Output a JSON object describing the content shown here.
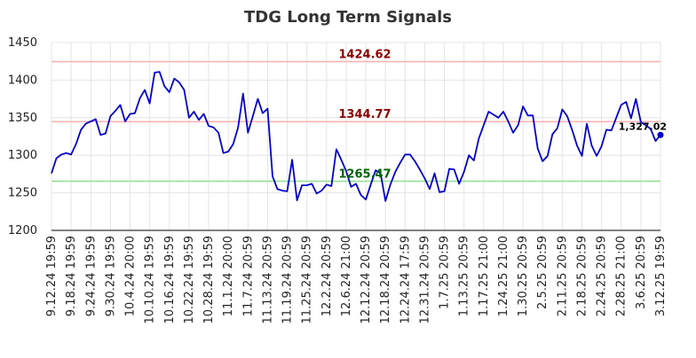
{
  "chart_data": {
    "type": "line",
    "title": "TDG Long Term Signals",
    "xlabel": "",
    "ylabel": "",
    "ylim": [
      1200,
      1450
    ],
    "yticks": [
      1200,
      1250,
      1300,
      1350,
      1400,
      1450
    ],
    "grid": true,
    "line_color": "#0000cc",
    "x_tick_labels": [
      "9.12.24 19:59",
      "9.18.24 19:59",
      "9.24.24 19:59",
      "9.30.24 19:59",
      "10.4.24 20:00",
      "10.10.24 19:59",
      "10.16.24 19:59",
      "10.22.24 19:59",
      "10.28.24 19:59",
      "11.1.24 20:00",
      "11.7.24 20:59",
      "11.13.24 20:59",
      "11.19.24 20:59",
      "11.25.24 20:59",
      "12.2.24 20:59",
      "12.6.24 21:00",
      "12.12.24 20:59",
      "12.18.24 20:59",
      "12.24.24 17:59",
      "12.31.24 20:59",
      "1.7.25 20:59",
      "1.13.25 20:59",
      "1.17.25 21:00",
      "1.24.25 21:00",
      "1.30.25 20:59",
      "2.5.25 20:59",
      "2.11.25 20:59",
      "2.18.25 20:59",
      "2.24.25 20:59",
      "2.28.25 21:00",
      "3.6.25 20:59",
      "3.12.25 19:59"
    ],
    "series": [
      {
        "values": [
          1276,
          1296,
          1301,
          1303,
          1301,
          1315,
          1334,
          1342,
          1345,
          1348,
          1327,
          1329,
          1352,
          1359,
          1367,
          1345,
          1355,
          1356,
          1376,
          1387,
          1369,
          1410,
          1411,
          1392,
          1384,
          1402,
          1397,
          1387,
          1350,
          1358,
          1347,
          1355,
          1339,
          1337,
          1330,
          1303,
          1305,
          1315,
          1337,
          1382,
          1330,
          1352,
          1375,
          1356,
          1362,
          1272,
          1255,
          1253,
          1252,
          1294,
          1240,
          1260,
          1260,
          1262,
          1249,
          1253,
          1261,
          1259,
          1308,
          1294,
          1279,
          1258,
          1262,
          1247,
          1241,
          1261,
          1280,
          1276,
          1239,
          1261,
          1278,
          1290,
          1301,
          1301,
          1292,
          1281,
          1269,
          1255,
          1276,
          1251,
          1252,
          1282,
          1281,
          1262,
          1278,
          1300,
          1293,
          1322,
          1340,
          1358,
          1354,
          1350,
          1358,
          1345,
          1330,
          1340,
          1365,
          1353,
          1353,
          1309,
          1292,
          1299,
          1328,
          1336,
          1361,
          1352,
          1334,
          1313,
          1299,
          1342,
          1313,
          1299,
          1312,
          1334,
          1333,
          1350,
          1367,
          1371,
          1349,
          1375,
          1344,
          1340,
          1335,
          1319,
          1327
        ]
      }
    ],
    "levels": [
      {
        "value": 1424.62,
        "label": "1424.62",
        "line_color": "#ffb0b0",
        "label_color": "#8b0000"
      },
      {
        "value": 1344.77,
        "label": "1344.77",
        "line_color": "#ffb0b0",
        "label_color": "#8b0000"
      },
      {
        "value": 1265.47,
        "label": "1265.47",
        "line_color": "#90e090",
        "label_color": "#006400"
      }
    ],
    "last_point": {
      "value": 1327.02,
      "label": "1,327.02",
      "color": "#0000cc"
    }
  }
}
